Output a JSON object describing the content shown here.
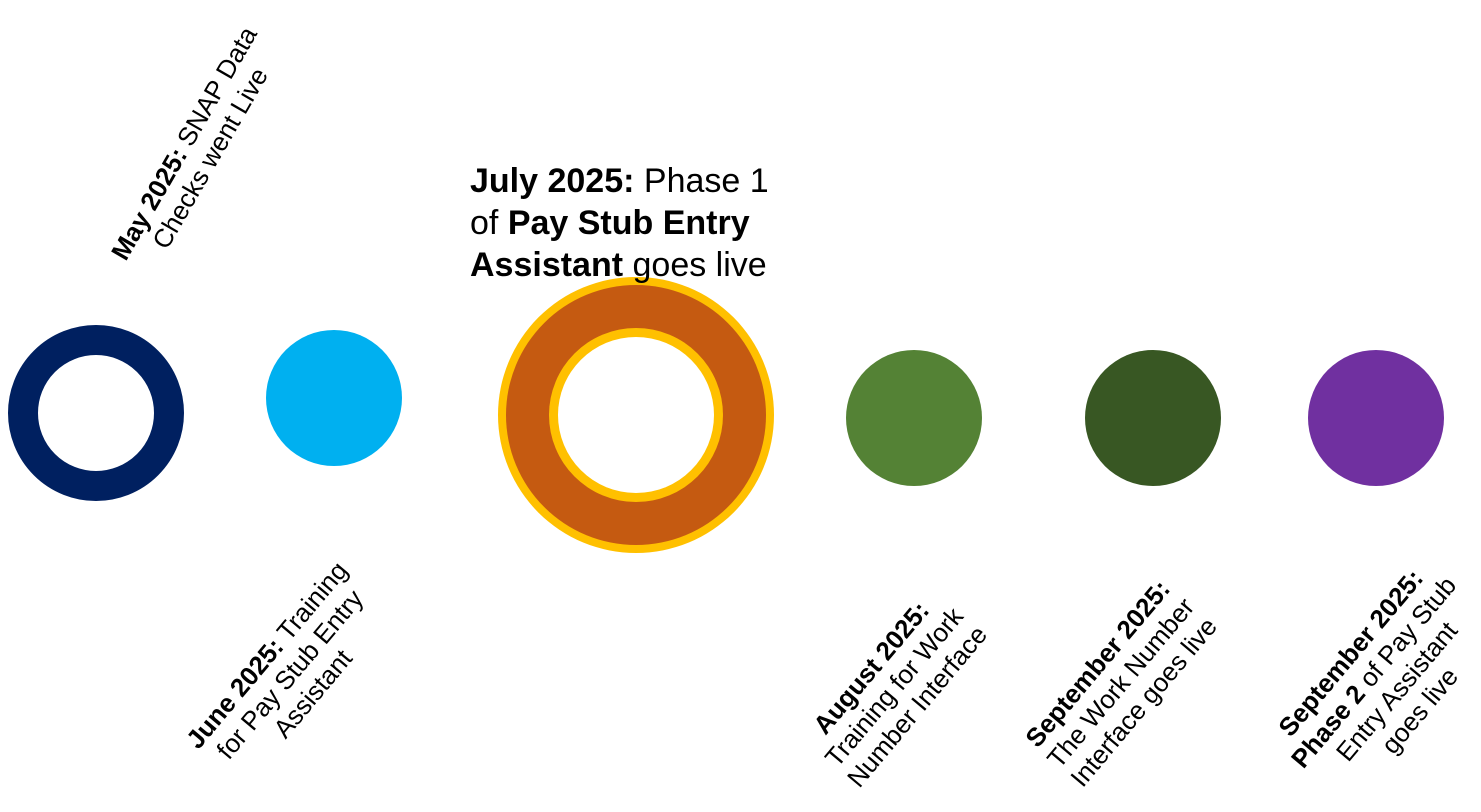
{
  "milestones": [
    {
      "id": "may-2025",
      "date_label": "May 2025:",
      "lines": [
        " SNAP Data",
        "Checks went Live"
      ],
      "color": "#002060",
      "style": "ring"
    },
    {
      "id": "june-2025",
      "date_label": "June 2025:",
      "lines": [
        " Training",
        "for Pay Stub Entry",
        "Assistant"
      ],
      "color": "#00B0F0",
      "style": "solid"
    },
    {
      "id": "july-2025",
      "date_label": "July 2025:",
      "lines": [
        " Phase 1",
        "of ",
        "Pay Stub Entry",
        "Assistant",
        " goes live"
      ],
      "color": "#C55A11",
      "outline_color": "#FFC000",
      "style": "featured-ring"
    },
    {
      "id": "august-2025",
      "date_label": "August 2025:",
      "lines": [
        "Training for Work",
        "Number Interface"
      ],
      "color": "#548235",
      "style": "solid"
    },
    {
      "id": "september-2025-a",
      "date_label": "September 2025:",
      "lines": [
        "The Work Number",
        "Interface goes live"
      ],
      "color": "#385723",
      "style": "solid"
    },
    {
      "id": "september-2025-b",
      "date_label": "September 2025:",
      "lines": [
        "Phase 2",
        " of Pay Stub",
        "Entry Assistant",
        "goes live"
      ],
      "color": "#7030A0",
      "style": "solid"
    }
  ]
}
